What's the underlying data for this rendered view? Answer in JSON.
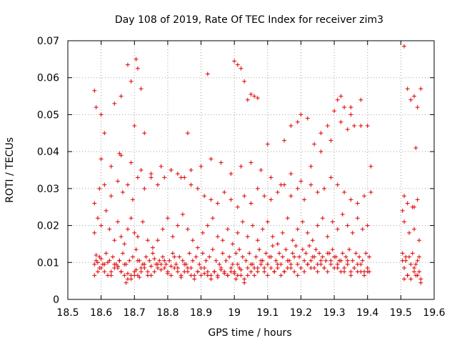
{
  "chart_data": {
    "type": "scatter",
    "title": "Day 108 of 2019, Rate Of TEC Index for receiver zim3",
    "xlabel": "GPS time / hours",
    "ylabel": "ROTI / TECUs",
    "xlim": [
      18.5,
      19.6
    ],
    "ylim": [
      0,
      0.07
    ],
    "xticks": [
      "18.5",
      "18.6",
      "18.7",
      "18.8",
      "18.9",
      "19",
      "19.1",
      "19.2",
      "19.3",
      "19.4",
      "19.5",
      "19.6"
    ],
    "yticks": [
      "0",
      "0.01",
      "0.02",
      "0.03",
      "0.04",
      "0.05",
      "0.06",
      "0.07"
    ],
    "grid": true,
    "marker": "+",
    "color": "#e00000",
    "series": [
      {
        "name": "ROTI",
        "x": [
          18.58,
          18.585,
          18.59,
          18.595,
          18.6,
          18.61,
          18.62,
          18.63,
          18.64,
          18.65,
          18.655,
          18.66,
          18.67,
          18.675,
          18.68,
          18.69,
          18.7,
          18.705,
          18.71,
          18.715,
          18.72,
          18.73,
          18.74,
          18.75,
          18.76,
          18.77,
          18.78,
          18.79,
          18.8,
          18.81,
          18.82,
          18.83,
          18.84,
          18.85,
          18.86,
          18.87,
          18.88,
          18.89,
          18.9,
          18.91,
          18.92,
          18.93,
          18.94,
          18.95,
          18.96,
          18.97,
          18.98,
          18.99,
          19.0,
          19.005,
          19.01,
          19.015,
          19.02,
          19.03,
          19.04,
          19.05,
          19.06,
          19.07,
          19.08,
          19.09,
          19.1,
          19.11,
          19.12,
          19.13,
          19.14,
          19.15,
          19.16,
          19.17,
          19.18,
          19.19,
          19.2,
          19.21,
          19.22,
          19.23,
          19.24,
          19.25,
          19.26,
          19.27,
          19.28,
          19.29,
          19.3,
          19.31,
          19.32,
          19.33,
          19.34,
          19.35,
          19.36,
          19.37,
          19.38,
          19.39,
          19.4,
          19.405,
          19.505,
          19.51,
          19.515,
          19.52,
          19.53,
          19.54,
          19.545,
          19.55,
          19.555,
          19.56,
          18.58,
          18.59,
          18.6,
          18.61,
          18.62,
          18.63,
          18.64,
          18.65,
          18.66,
          18.67,
          18.68,
          18.69,
          18.7,
          18.71,
          18.72,
          18.73,
          18.74,
          18.75,
          18.76,
          18.77,
          18.78,
          18.79,
          18.8,
          18.81,
          18.82,
          18.83,
          18.84,
          18.85,
          18.86,
          18.87,
          18.88,
          18.89,
          18.9,
          18.91,
          18.92,
          18.93,
          18.94,
          18.95,
          18.96,
          18.97,
          18.98,
          18.99,
          19.0,
          19.01,
          19.02,
          19.03,
          19.04,
          19.05,
          19.06,
          19.07,
          19.08,
          19.09,
          19.1,
          19.11,
          19.12,
          19.13,
          19.14,
          19.15,
          19.16,
          19.17,
          19.18,
          19.19,
          19.2,
          19.21,
          19.22,
          19.23,
          19.24,
          19.25,
          19.26,
          19.27,
          19.28,
          19.29,
          19.3,
          19.31,
          19.32,
          19.33,
          19.34,
          19.35,
          19.36,
          19.37,
          19.38,
          19.39,
          19.4,
          19.51,
          19.52,
          19.53,
          19.54,
          19.55,
          19.56,
          18.585,
          18.595,
          18.605,
          18.615,
          18.625,
          18.635,
          18.645,
          18.655,
          18.665,
          18.675,
          18.685,
          18.695,
          18.705,
          18.715,
          18.725,
          18.735,
          18.745,
          18.755,
          18.765,
          18.775,
          18.785,
          18.795,
          18.805,
          18.815,
          18.825,
          18.835,
          18.845,
          18.855,
          18.865,
          18.875,
          18.885,
          18.895,
          18.905,
          18.915,
          18.925,
          18.935,
          18.945,
          18.955,
          18.965,
          18.975,
          18.985,
          18.995,
          19.005,
          19.015,
          19.025,
          19.035,
          19.045,
          19.055,
          19.065,
          19.075,
          19.085,
          19.095,
          19.105,
          19.115,
          19.125,
          19.135,
          19.145,
          19.155,
          19.165,
          19.175,
          19.185,
          19.195,
          19.205,
          19.215,
          19.225,
          19.235,
          19.245,
          19.255,
          19.265,
          19.275,
          19.285,
          19.295,
          19.305,
          19.315,
          19.325,
          19.335,
          19.345,
          19.355,
          19.365,
          19.375,
          19.385,
          19.395,
          19.405,
          19.505,
          19.515,
          19.525,
          19.535,
          19.545,
          19.555,
          18.58,
          18.59,
          18.6,
          18.615,
          18.625,
          18.64,
          18.65,
          18.66,
          18.67,
          18.68,
          18.69,
          18.7,
          18.71,
          18.725,
          18.74,
          18.755,
          18.77,
          18.785,
          18.8,
          18.815,
          18.83,
          18.845,
          18.86,
          18.875,
          18.89,
          18.905,
          18.92,
          18.935,
          18.95,
          18.965,
          18.98,
          18.995,
          19.01,
          19.025,
          19.04,
          19.055,
          19.07,
          19.085,
          19.1,
          19.115,
          19.13,
          19.145,
          19.16,
          19.175,
          19.19,
          19.205,
          19.22,
          19.235,
          19.25,
          19.265,
          19.28,
          19.295,
          19.31,
          19.325,
          19.34,
          19.355,
          19.37,
          19.385,
          19.4,
          19.51,
          19.525,
          19.54,
          19.555,
          18.58,
          18.595,
          18.61,
          18.63,
          18.65,
          18.665,
          18.68,
          18.695,
          18.71,
          18.73,
          18.75,
          18.77,
          18.79,
          18.81,
          18.83,
          18.85,
          18.87,
          18.89,
          18.91,
          18.93,
          18.95,
          18.97,
          18.99,
          19.01,
          19.03,
          19.05,
          19.07,
          19.09,
          19.11,
          19.13,
          19.15,
          19.17,
          19.19,
          19.21,
          19.23,
          19.25,
          19.27,
          19.29,
          19.31,
          19.33,
          19.35,
          19.37,
          19.39,
          19.41,
          19.505,
          19.52,
          19.535,
          19.55,
          18.6,
          18.63,
          18.66,
          18.69,
          18.72,
          18.75,
          18.78,
          18.81,
          18.84,
          18.87,
          18.9,
          18.93,
          18.96,
          18.99,
          19.02,
          19.05,
          19.08,
          19.11,
          19.14,
          19.17,
          19.2,
          19.23,
          19.26,
          19.29,
          19.32,
          19.35,
          19.38,
          19.41,
          19.51,
          19.54,
          18.58,
          18.585,
          18.6,
          18.61,
          18.64,
          18.655,
          18.66,
          18.68,
          18.69,
          18.7,
          18.705,
          18.71,
          18.72,
          18.73,
          18.86,
          18.92,
          19.0,
          19.01,
          19.02,
          19.03,
          19.04,
          19.05,
          19.06,
          19.07,
          19.1,
          19.15,
          19.17,
          19.19,
          19.2,
          19.22,
          19.24,
          19.26,
          19.28,
          19.3,
          19.31,
          19.32,
          19.33,
          19.34,
          19.35,
          19.36,
          19.38,
          19.4,
          19.51,
          19.52,
          19.53,
          19.54,
          19.545,
          19.55,
          19.56
        ],
        "y": [
          0.0095,
          0.012,
          0.01,
          0.0085,
          0.011,
          0.0075,
          0.01,
          0.0065,
          0.0085,
          0.009,
          0.0105,
          0.0075,
          0.0095,
          0.0045,
          0.007,
          0.0055,
          0.0065,
          0.008,
          0.0105,
          0.006,
          0.0075,
          0.0085,
          0.0065,
          0.009,
          0.011,
          0.0095,
          0.008,
          0.0105,
          0.007,
          0.009,
          0.0115,
          0.0085,
          0.006,
          0.0095,
          0.0075,
          0.0085,
          0.0065,
          0.0075,
          0.0085,
          0.007,
          0.0065,
          0.0055,
          0.0075,
          0.006,
          0.008,
          0.007,
          0.0065,
          0.0075,
          0.007,
          0.0055,
          0.0065,
          0.0085,
          0.008,
          0.0045,
          0.0065,
          0.0095,
          0.0085,
          0.0075,
          0.0105,
          0.0085,
          0.0095,
          0.0115,
          0.0075,
          0.0085,
          0.0095,
          0.0075,
          0.0105,
          0.0085,
          0.0115,
          0.0095,
          0.0085,
          0.0105,
          0.0095,
          0.0085,
          0.0115,
          0.0095,
          0.0105,
          0.0085,
          0.0125,
          0.0095,
          0.0115,
          0.0085,
          0.0105,
          0.0075,
          0.0095,
          0.0065,
          0.0085,
          0.0075,
          0.0095,
          0.0075,
          0.0085,
          0.0075,
          0.0105,
          0.0085,
          0.0115,
          0.0065,
          0.0095,
          0.0085,
          0.0065,
          0.0105,
          0.0075,
          0.0045,
          0.0065,
          0.0075,
          0.0085,
          0.0095,
          0.0065,
          0.0075,
          0.0095,
          0.0085,
          0.0075,
          0.0065,
          0.0055,
          0.0065,
          0.0075,
          0.0065,
          0.0085,
          0.0095,
          0.0075,
          0.0065,
          0.0075,
          0.0085,
          0.0095,
          0.0085,
          0.0075,
          0.0065,
          0.0085,
          0.0075,
          0.0065,
          0.0075,
          0.0085,
          0.0065,
          0.0055,
          0.0075,
          0.0065,
          0.0085,
          0.0075,
          0.0065,
          0.0075,
          0.0065,
          0.0085,
          0.0075,
          0.0065,
          0.0085,
          0.0075,
          0.0095,
          0.0065,
          0.0055,
          0.0085,
          0.0075,
          0.0065,
          0.0085,
          0.0095,
          0.0075,
          0.0065,
          0.0085,
          0.0075,
          0.0095,
          0.0065,
          0.0075,
          0.0085,
          0.0095,
          0.0075,
          0.0065,
          0.0085,
          0.0075,
          0.0095,
          0.0105,
          0.0085,
          0.0075,
          0.0095,
          0.0085,
          0.0075,
          0.0105,
          0.0085,
          0.0095,
          0.0075,
          0.0085,
          0.0105,
          0.0075,
          0.0085,
          0.0095,
          0.0075,
          0.0065,
          0.0075,
          0.0055,
          0.0065,
          0.0055,
          0.0075,
          0.0065,
          0.0055,
          0.0105,
          0.0115,
          0.0095,
          0.0125,
          0.0105,
          0.0115,
          0.0095,
          0.0105,
          0.0125,
          0.0095,
          0.0105,
          0.0115,
          0.0135,
          0.0105,
          0.0095,
          0.0115,
          0.0105,
          0.0125,
          0.0095,
          0.0105,
          0.0115,
          0.0095,
          0.0105,
          0.0125,
          0.0095,
          0.0115,
          0.0105,
          0.0095,
          0.0125,
          0.0105,
          0.0115,
          0.0095,
          0.0125,
          0.0105,
          0.0115,
          0.0135,
          0.0105,
          0.0095,
          0.0125,
          0.0105,
          0.0115,
          0.0095,
          0.0125,
          0.0135,
          0.0115,
          0.0105,
          0.0125,
          0.0095,
          0.0115,
          0.0135,
          0.0105,
          0.0125,
          0.0115,
          0.0145,
          0.0105,
          0.0125,
          0.0115,
          0.0135,
          0.0105,
          0.0125,
          0.0145,
          0.0115,
          0.0135,
          0.0125,
          0.0145,
          0.0115,
          0.0135,
          0.0125,
          0.0115,
          0.0105,
          0.0125,
          0.0135,
          0.0115,
          0.0105,
          0.0125,
          0.0115,
          0.0135,
          0.0105,
          0.0125,
          0.0115,
          0.0105,
          0.0125,
          0.0115,
          0.0125,
          0.0105,
          0.0115,
          0.0125,
          0.0095,
          0.0115,
          0.018,
          0.022,
          0.02,
          0.024,
          0.019,
          0.016,
          0.021,
          0.017,
          0.015,
          0.019,
          0.022,
          0.018,
          0.017,
          0.021,
          0.016,
          0.014,
          0.016,
          0.019,
          0.022,
          0.017,
          0.02,
          0.023,
          0.019,
          0.016,
          0.014,
          0.018,
          0.02,
          0.022,
          0.017,
          0.016,
          0.019,
          0.015,
          0.018,
          0.021,
          0.017,
          0.02,
          0.016,
          0.019,
          0.021,
          0.017,
          0.015,
          0.018,
          0.022,
          0.016,
          0.019,
          0.021,
          0.018,
          0.016,
          0.02,
          0.022,
          0.017,
          0.021,
          0.019,
          0.023,
          0.02,
          0.018,
          0.022,
          0.019,
          0.02,
          0.021,
          0.018,
          0.019,
          0.016,
          0.026,
          0.03,
          0.031,
          0.028,
          0.032,
          0.029,
          0.031,
          0.027,
          0.033,
          0.03,
          0.034,
          0.031,
          0.033,
          0.035,
          0.034,
          0.033,
          0.031,
          0.03,
          0.028,
          0.027,
          0.026,
          0.029,
          0.027,
          0.025,
          0.028,
          0.026,
          0.03,
          0.028,
          0.027,
          0.029,
          0.031,
          0.028,
          0.03,
          0.027,
          0.031,
          0.029,
          0.03,
          0.033,
          0.031,
          0.029,
          0.027,
          0.026,
          0.028,
          0.029,
          0.024,
          0.026,
          0.025,
          0.027,
          0.038,
          0.036,
          0.039,
          0.037,
          0.035,
          0.033,
          0.036,
          0.035,
          0.033,
          0.035,
          0.036,
          0.038,
          0.037,
          0.034,
          0.036,
          0.037,
          0.035,
          0.033,
          0.031,
          0.034,
          0.032,
          0.036,
          0.04,
          0.043,
          0.048,
          0.052,
          0.047,
          0.036,
          0.028,
          0.025,
          0.0565,
          0.052,
          0.05,
          0.045,
          0.053,
          0.0395,
          0.055,
          0.0635,
          0.059,
          0.047,
          0.065,
          0.0625,
          0.057,
          0.045,
          0.045,
          0.061,
          0.0645,
          0.0635,
          0.0625,
          0.059,
          0.054,
          0.0555,
          0.055,
          0.0545,
          0.042,
          0.043,
          0.047,
          0.048,
          0.05,
          0.049,
          0.042,
          0.045,
          0.047,
          0.051,
          0.054,
          0.055,
          0.052,
          0.046,
          0.05,
          0.047,
          0.054,
          0.047,
          0.0685,
          0.057,
          0.054,
          0.055,
          0.041,
          0.052,
          0.057
        ]
      }
    ]
  }
}
